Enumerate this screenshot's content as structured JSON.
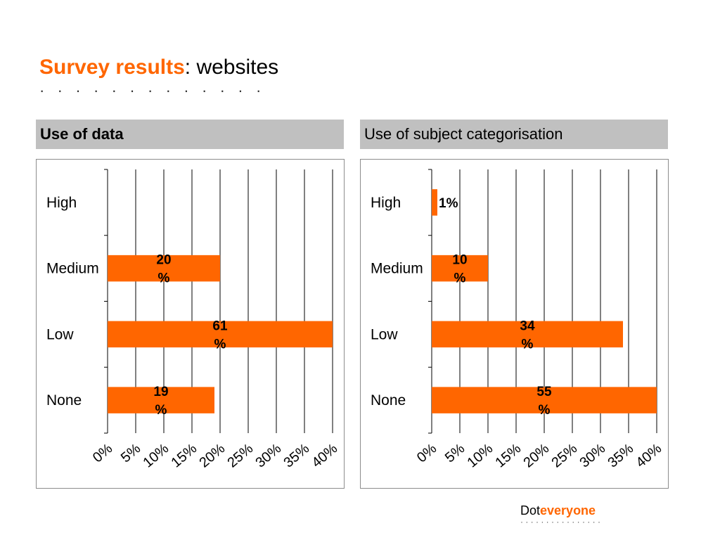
{
  "title": {
    "accent": "Survey results",
    "rest": ": websites",
    "dots": "·   ·   ·   ·   ·   ·   ·   ·   ·   ·   ·   ·   ·"
  },
  "panels": [
    {
      "header": "Use of data"
    },
    {
      "header": "Use of subject categorisation"
    }
  ],
  "logo": {
    "part1": "Dot",
    "part2": "everyone",
    "dots": "· · · · · · · · · · · · · · · ·"
  },
  "colors": {
    "accent": "#ff6600",
    "bar": "#ff6600",
    "header_bg": "#c0c0c0"
  },
  "chart_data": [
    {
      "type": "bar",
      "orientation": "horizontal",
      "categories": [
        "High",
        "Medium",
        "Low",
        "None"
      ],
      "values": [
        null,
        20,
        61,
        19
      ],
      "data_labels": [
        "",
        "20\n%",
        "61\n%",
        "19\n%"
      ],
      "xlim": [
        0,
        40
      ],
      "x_ticks": [
        "0%",
        "5%",
        "10%",
        "15%",
        "20%",
        "25%",
        "30%",
        "35%",
        "40%"
      ],
      "grid": true
    },
    {
      "type": "bar",
      "orientation": "horizontal",
      "categories": [
        "High",
        "Medium",
        "Low",
        "None"
      ],
      "values": [
        1,
        10,
        34,
        55
      ],
      "data_labels": [
        "1%",
        "10\n%",
        "34\n%",
        "55\n%"
      ],
      "xlim": [
        0,
        40
      ],
      "x_ticks": [
        "0%",
        "5%",
        "10%",
        "15%",
        "20%",
        "25%",
        "30%",
        "35%",
        "40%"
      ],
      "grid": true
    }
  ]
}
